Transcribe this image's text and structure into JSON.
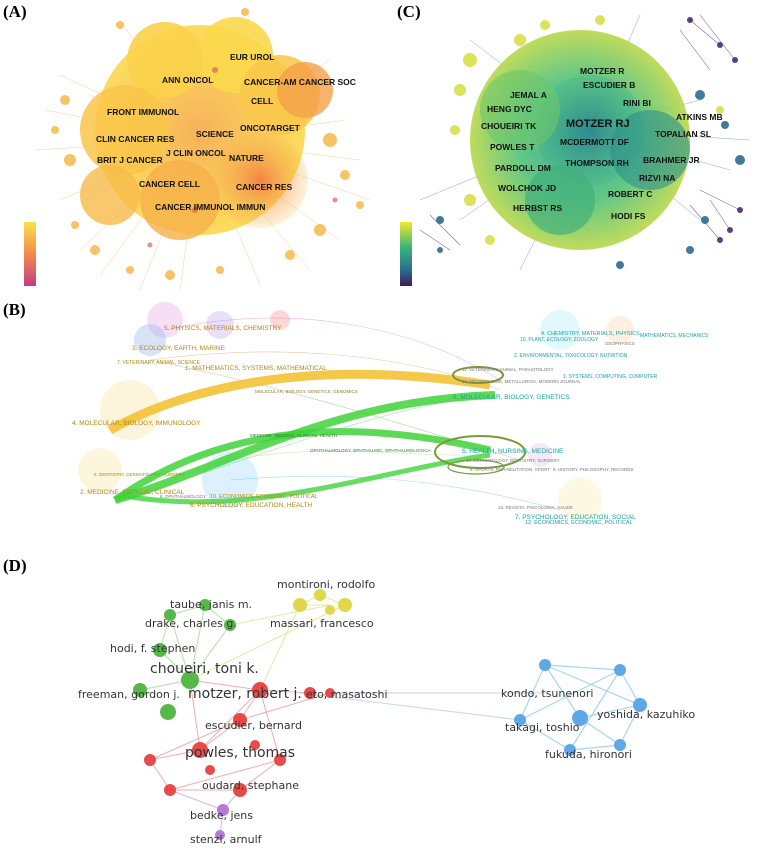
{
  "panels": {
    "a": {
      "label": "(A)",
      "journals": [
        "EUR UROL",
        "ANN ONCOL",
        "CANCER-AM CANCER SOC",
        "CELL",
        "FRONT IMMUNOL",
        "ONCOTARGET",
        "SCIENCE",
        "CLIN CANCER RES",
        "J CLIN ONCOL",
        "BRIT J CANCER",
        "NATURE",
        "CANCER CELL",
        "CANCER RES",
        "CANCER IMMUNOL IMMUN"
      ]
    },
    "c": {
      "label": "(C)",
      "authors": [
        "MOTZER R",
        "ESCUDIER B",
        "JEMAL A",
        "RINI BI",
        "HENG DYC",
        "ATKINS MB",
        "MOTZER RJ",
        "CHOUEIRI TK",
        "TOPALIAN SL",
        "MCDERMOTT DF",
        "POWLES T",
        "BRAHMER JR",
        "THOMPSON RH",
        "PARDOLL DM",
        "RIZVI NA",
        "ROBERT C",
        "WOLCHOK JD",
        "HERBST RS",
        "HODI FS"
      ]
    },
    "b": {
      "label": "(B)",
      "left_clusters": [
        "5. PHYSICS, MATERIALS, CHEMISTRY",
        "3. ECOLOGY, EARTH, MARINE",
        "7. VETERINARY, ANIMAL, SCIENCE",
        "1. MATHEMATICS, SYSTEMS, MATHEMATICAL",
        "4. MOLECULAR, BIOLOGY, IMMUNOLOGY",
        "9. DENTISTRY, DERMATOLOGY, SURGERY",
        "2. MEDICINE, MEDICAL, CLINICAL",
        "8. OPHTHALMOLOGY",
        "10. ECONOMICS, ECONOMIC, POLITICAL",
        "6. PSYCHOLOGY, EDUCATION, HEALTH"
      ],
      "right_clusters": [
        "4. CHEMISTRY, MATERIALS, PHYSICS",
        "10. PLANT, ECOLOGY, ZOOLOGY",
        "MATHEMATICS, MECHANICS",
        "GEOPHYSICS",
        "2. ENVIRONMENTAL, TOXICOLOGY, NUTRITION",
        "1. SYSTEMS, COMPUTING, COMPUTER",
        "11. VETERINARY, ANIMAL, PARASITOLOGY",
        "13. TECHNOLOGIE, METALLURGIA, MODERN JOURNAL",
        "8. MOLECULAR, BIOLOGY, GENETICS",
        "5. HEALTH, NURSING, MEDICINE",
        "16. DERMATOLOGY, DENTISTRY, SURGERY",
        "8. SPORTS, REHABILITATION, SPORT",
        "9. HISTORY, PHILOSOPHY, RECORDS",
        "13. REVISTA, PSICOLOGIA, SAUDE",
        "7. PSYCHOLOGY, EDUCATION, SOCIAL",
        "12. ECONOMICS, ECONOMIC, POLITICAL"
      ],
      "flow_labels": [
        "MOLECULAR, BIOLOGY, GENETICS, GENOMICS",
        "MEDICINE, MEDICAL, CLINICAL, HEALTH",
        "OPHTHALMOLOGY, OPHTHALMIC, OPHTHALMOLOGICA"
      ]
    },
    "d": {
      "label": "(D)",
      "authors": [
        "montironi, rodolfo",
        "taube, janis m.",
        "drake, charles g.",
        "massari, francesco",
        "hodi, f. stephen",
        "choueiri, toni k.",
        "freeman, gordon j.",
        "motzer, robert j.",
        "eto, masatoshi",
        "kondo, tsunenori",
        "escudier, bernard",
        "yoshida, kazuhiko",
        "takagi, toshio",
        "powles, thomas",
        "fukuda, hironori",
        "oudard, stephane",
        "bedke, jens",
        "stenzl, arnulf"
      ]
    }
  }
}
